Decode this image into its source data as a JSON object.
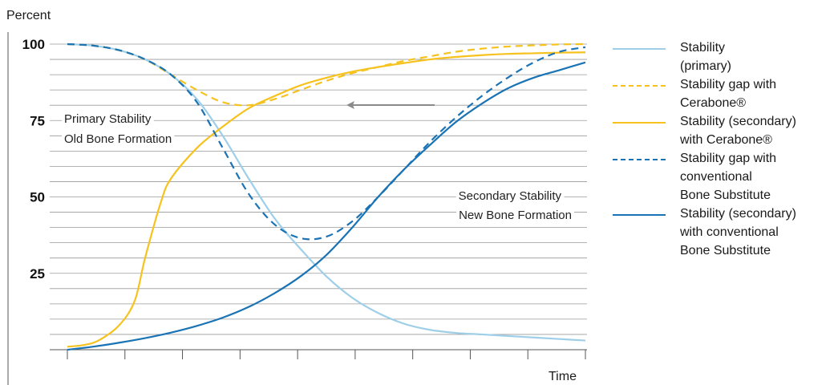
{
  "chart_data": {
    "type": "line",
    "ylabel": "Percent",
    "xlabel": "Time",
    "yticks": [
      100,
      75,
      50,
      25
    ],
    "ylim": [
      0,
      102
    ],
    "xlim": [
      0,
      10
    ],
    "grid": true,
    "legend_position": "right",
    "series": [
      {
        "name": "Stability\n(primary)",
        "color": "#9fcfe8",
        "dash": "solid",
        "x": [
          0,
          0.5,
          1,
          1.5,
          2,
          2.5,
          3,
          3.5,
          4,
          4.5,
          5,
          5.5,
          6,
          6.5,
          7,
          7.5,
          8,
          8.5,
          9,
          9.5,
          10
        ],
        "y": [
          100,
          99.5,
          98,
          95,
          90,
          82,
          70,
          56,
          43,
          33,
          24,
          17,
          12,
          8.5,
          6.5,
          5.5,
          5,
          4.5,
          4,
          3.5,
          3
        ]
      },
      {
        "name": "Stability gap with\nCerabone®",
        "color": "#f6c21e",
        "dash": "dashed",
        "x": [
          0,
          0.5,
          1,
          1.5,
          2,
          2.5,
          3,
          3.5,
          4,
          4.5,
          5,
          5.5,
          6,
          6.5,
          7,
          7.5,
          8,
          8.5,
          9,
          9.5,
          10
        ],
        "y": [
          100,
          99.5,
          98,
          95,
          90,
          85,
          81,
          80,
          82,
          85,
          88,
          90.5,
          92.5,
          94.5,
          96,
          97.5,
          98.5,
          99.2,
          99.6,
          99.9,
          100
        ]
      },
      {
        "name": "Stability (secondary)\nwith Cerabone®",
        "color": "#f6c21e",
        "dash": "solid",
        "x": [
          0,
          0.3,
          0.6,
          1,
          1.3,
          1.5,
          1.8,
          2,
          2.5,
          3,
          3.5,
          4,
          4.5,
          5,
          5.5,
          6,
          6.5,
          7,
          7.5,
          8,
          8.5,
          9,
          9.5,
          10
        ],
        "y": [
          1,
          1.5,
          3,
          8,
          16,
          30,
          48,
          56,
          66,
          73,
          79,
          83,
          86.5,
          89,
          91,
          92.5,
          93.8,
          95,
          95.8,
          96.4,
          96.8,
          97,
          97.2,
          97.3
        ]
      },
      {
        "name": "Stability gap with\nconventional\nBone Substitute",
        "color": "#1a73b5",
        "dash": "dashed",
        "x": [
          0,
          0.5,
          1,
          1.5,
          2,
          2.5,
          3,
          3.5,
          4,
          4.5,
          5,
          5.5,
          6,
          6.5,
          7,
          7.5,
          8,
          8.5,
          9,
          9.5,
          10
        ],
        "y": [
          100,
          99.5,
          98,
          95,
          90,
          81,
          66,
          51,
          41,
          36.5,
          37,
          42,
          50,
          59,
          68,
          76,
          83,
          89,
          94,
          97.5,
          99
        ]
      },
      {
        "name": "Stability (secondary)\nwith conventional\nBone Substitute",
        "color": "#1a73b5",
        "dash": "solid",
        "x": [
          0,
          0.5,
          1,
          1.5,
          2,
          2.5,
          3,
          3.5,
          4,
          4.5,
          5,
          5.5,
          6,
          6.5,
          7,
          7.5,
          8,
          8.5,
          9,
          9.5,
          10
        ],
        "y": [
          0,
          1,
          2.3,
          3.8,
          5.6,
          7.8,
          10.5,
          14,
          18.5,
          24,
          31,
          40,
          50,
          59,
          67,
          74.5,
          80.5,
          85.5,
          89,
          91.5,
          94
        ]
      }
    ],
    "annotations": [
      {
        "text": "Primary Stability"
      },
      {
        "text": "Old Bone Formation"
      },
      {
        "text": "Secondary Stability"
      },
      {
        "text": "New Bone Formation"
      }
    ]
  },
  "colors": {
    "grid": "#9a9a9a",
    "axis": "#555555",
    "arrow": "#8a8a8a"
  }
}
